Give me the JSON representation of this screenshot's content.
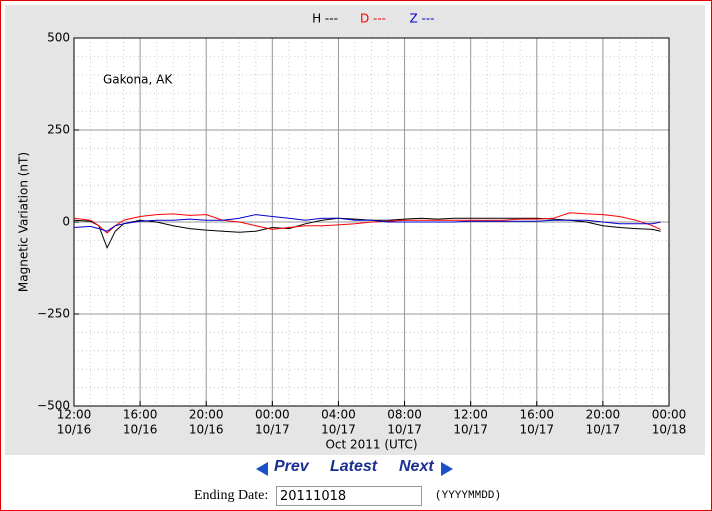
{
  "chart_data": {
    "type": "line",
    "legend": "top",
    "annotation": "Gakona, AK",
    "ylabel": "Magnetic Variation (nT)",
    "xlabel": "Oct 2011 (UTC)",
    "grid": true,
    "minor_grid": {
      "y": 50,
      "x_minutes": 60
    },
    "ylim": [
      -500,
      500
    ],
    "yticks": [
      {
        "value": -500,
        "label": "−500"
      },
      {
        "value": -250,
        "label": "−250"
      },
      0,
      250,
      500
    ],
    "xlim": [
      "2011-10-16T12:00",
      "2011-10-18T00:00"
    ],
    "xticks": [
      {
        "value": "2011-10-16T12:00",
        "label": [
          "12:00",
          "10/16"
        ]
      },
      {
        "value": "2011-10-16T16:00",
        "label": [
          "16:00",
          "10/16"
        ]
      },
      {
        "value": "2011-10-16T20:00",
        "label": [
          "20:00",
          "10/16"
        ]
      },
      {
        "value": "2011-10-17T00:00",
        "label": [
          "00:00",
          "10/17"
        ]
      },
      {
        "value": "2011-10-17T04:00",
        "label": [
          "04:00",
          "10/17"
        ]
      },
      {
        "value": "2011-10-17T08:00",
        "label": [
          "08:00",
          "10/17"
        ]
      },
      {
        "value": "2011-10-17T12:00",
        "label": [
          "12:00",
          "10/17"
        ]
      },
      {
        "value": "2011-10-17T16:00",
        "label": [
          "16:00",
          "10/17"
        ]
      },
      {
        "value": "2011-10-17T20:00",
        "label": [
          "20:00",
          "10/17"
        ]
      },
      {
        "value": "2011-10-18T00:00",
        "label": [
          "00:00",
          "10/18"
        ]
      }
    ],
    "x": [
      "2011-10-16T12:00",
      "2011-10-16T13:00",
      "2011-10-16T13:30",
      "2011-10-16T14:00",
      "2011-10-16T14:30",
      "2011-10-16T15:00",
      "2011-10-16T16:00",
      "2011-10-16T17:00",
      "2011-10-16T18:00",
      "2011-10-16T19:00",
      "2011-10-16T20:00",
      "2011-10-16T21:00",
      "2011-10-16T22:00",
      "2011-10-16T23:00",
      "2011-10-17T00:00",
      "2011-10-17T01:00",
      "2011-10-17T02:00",
      "2011-10-17T03:00",
      "2011-10-17T04:00",
      "2011-10-17T05:00",
      "2011-10-17T06:00",
      "2011-10-17T07:00",
      "2011-10-17T08:00",
      "2011-10-17T09:00",
      "2011-10-17T10:00",
      "2011-10-17T11:00",
      "2011-10-17T12:00",
      "2011-10-17T13:00",
      "2011-10-17T14:00",
      "2011-10-17T15:00",
      "2011-10-17T16:00",
      "2011-10-17T17:00",
      "2011-10-17T18:00",
      "2011-10-17T19:00",
      "2011-10-17T20:00",
      "2011-10-17T21:00",
      "2011-10-17T22:00",
      "2011-10-17T23:00",
      "2011-10-17T23:30"
    ],
    "series": [
      {
        "name": "H ---",
        "color": "#000000",
        "values": [
          5,
          2,
          -10,
          -70,
          -25,
          -5,
          5,
          0,
          -10,
          -18,
          -22,
          -25,
          -28,
          -25,
          -15,
          -18,
          -5,
          5,
          10,
          8,
          5,
          5,
          8,
          10,
          8,
          10,
          10,
          10,
          10,
          10,
          10,
          8,
          5,
          0,
          -10,
          -15,
          -18,
          -20,
          -25
        ]
      },
      {
        "name": "D ---",
        "color": "#ff0000",
        "values": [
          10,
          5,
          -10,
          -30,
          -10,
          5,
          15,
          20,
          22,
          18,
          20,
          5,
          0,
          -10,
          -20,
          -15,
          -10,
          -10,
          -8,
          -5,
          0,
          2,
          5,
          5,
          5,
          5,
          5,
          5,
          5,
          8,
          8,
          10,
          25,
          22,
          20,
          15,
          5,
          -10,
          -20
        ]
      },
      {
        "name": "Z ---",
        "color": "#0000cc",
        "values": [
          -15,
          -12,
          -18,
          -25,
          -10,
          -5,
          2,
          5,
          5,
          8,
          5,
          5,
          10,
          20,
          15,
          10,
          5,
          10,
          10,
          5,
          5,
          0,
          0,
          0,
          0,
          0,
          2,
          2,
          2,
          2,
          2,
          5,
          5,
          5,
          0,
          -5,
          -5,
          -5,
          0
        ]
      }
    ]
  },
  "controls": {
    "prev": "Prev",
    "latest": "Latest",
    "next": "Next",
    "date_label": "Ending Date:",
    "date_value": "20111018",
    "date_format": "(YYYYMMDD)"
  }
}
